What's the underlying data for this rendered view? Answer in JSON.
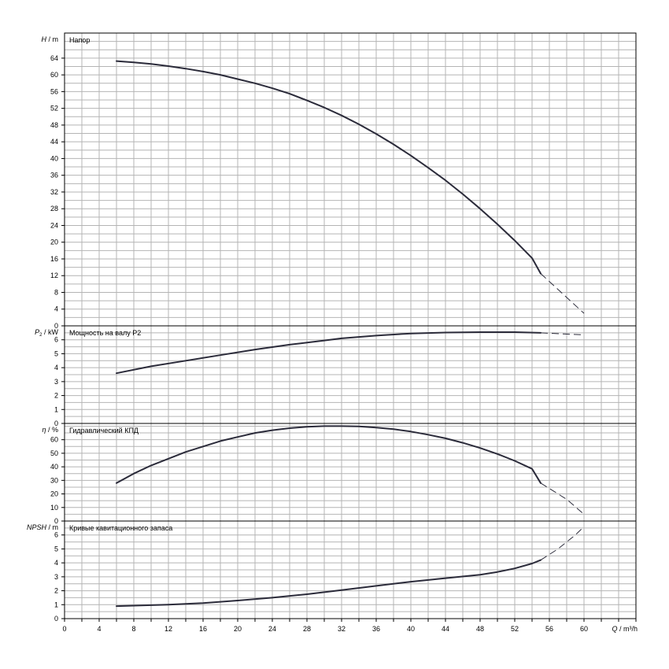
{
  "chart_data": [
    {
      "type": "line",
      "id": "head",
      "title": "Напор",
      "ylabel": {
        "sym": "H",
        "unit": "m"
      },
      "xlim": [
        0,
        66
      ],
      "ylim": [
        0,
        70
      ],
      "yticks": [
        0,
        4,
        8,
        12,
        16,
        20,
        24,
        28,
        32,
        36,
        40,
        44,
        48,
        52,
        56,
        60,
        64
      ],
      "series": [
        {
          "x": [
            6,
            8,
            10,
            12,
            14,
            16,
            18,
            20,
            22,
            24,
            26,
            28,
            30,
            32,
            34,
            36,
            38,
            40,
            42,
            44,
            46,
            48,
            50,
            52,
            54,
            55
          ],
          "y": [
            63.3,
            63.0,
            62.6,
            62.1,
            61.5,
            60.8,
            60.0,
            59.0,
            58.0,
            56.8,
            55.5,
            53.9,
            52.2,
            50.3,
            48.2,
            45.9,
            43.4,
            40.7,
            37.8,
            34.8,
            31.5,
            28.0,
            24.3,
            20.4,
            16.2,
            12.5
          ]
        },
        {
          "style": "dashed",
          "x": [
            55,
            60
          ],
          "y": [
            12.5,
            3.0
          ]
        }
      ]
    },
    {
      "type": "line",
      "id": "power",
      "title": "Мощность на валу P2",
      "ylabel": {
        "sym": "P",
        "sub": "2",
        "unit": "kW"
      },
      "xlim": [
        0,
        66
      ],
      "ylim": [
        0,
        7
      ],
      "yticks": [
        0,
        1,
        2,
        3,
        4,
        5,
        6
      ],
      "series": [
        {
          "x": [
            6,
            10,
            14,
            18,
            22,
            26,
            30,
            32,
            36,
            40,
            44,
            48,
            52,
            55
          ],
          "y": [
            3.6,
            4.1,
            4.5,
            4.9,
            5.3,
            5.65,
            5.95,
            6.1,
            6.3,
            6.45,
            6.52,
            6.55,
            6.55,
            6.5
          ]
        },
        {
          "style": "dashed",
          "x": [
            55,
            60
          ],
          "y": [
            6.5,
            6.35
          ]
        }
      ]
    },
    {
      "type": "line",
      "id": "efficiency",
      "title": "Гидравлический КПД",
      "ylabel": {
        "sym": "η",
        "unit": "%"
      },
      "xlim": [
        0,
        66
      ],
      "ylim": [
        0,
        72
      ],
      "yticks": [
        0,
        10,
        20,
        30,
        40,
        50,
        60
      ],
      "series": [
        {
          "x": [
            6,
            8,
            10,
            12,
            14,
            16,
            18,
            20,
            22,
            24,
            26,
            28,
            30,
            32,
            34,
            36,
            38,
            40,
            42,
            44,
            46,
            48,
            50,
            52,
            54,
            55
          ],
          "y": [
            28,
            35,
            41,
            46,
            51,
            55,
            59,
            62,
            65,
            67,
            68.5,
            69.5,
            70,
            70,
            69.8,
            69,
            67.8,
            66,
            63.7,
            61,
            57.7,
            53.9,
            49.5,
            44.4,
            38.5,
            28
          ]
        },
        {
          "style": "dashed",
          "x": [
            55,
            58,
            60
          ],
          "y": [
            28,
            16,
            5
          ]
        }
      ]
    },
    {
      "type": "line",
      "id": "npsh",
      "title": "Кривые кавитационного запаса",
      "ylabel": {
        "sym": "NPSH",
        "unit": "m"
      },
      "xlabel": {
        "sym": "Q",
        "unit": "m³/h"
      },
      "xlim": [
        0,
        66
      ],
      "ylim": [
        0,
        7
      ],
      "yticks": [
        0,
        1,
        2,
        3,
        4,
        5,
        6
      ],
      "xticks": [
        0,
        4,
        8,
        12,
        16,
        20,
        24,
        28,
        32,
        36,
        40,
        44,
        48,
        52,
        56,
        60
      ],
      "series": [
        {
          "x": [
            6,
            8,
            12,
            16,
            20,
            24,
            28,
            32,
            36,
            40,
            44,
            48,
            50,
            52,
            54,
            55
          ],
          "y": [
            0.9,
            0.93,
            1.0,
            1.12,
            1.3,
            1.5,
            1.75,
            2.05,
            2.35,
            2.65,
            2.9,
            3.15,
            3.35,
            3.6,
            3.95,
            4.2
          ]
        },
        {
          "style": "dashed",
          "x": [
            55,
            57,
            59,
            60
          ],
          "y": [
            4.2,
            5.0,
            6.0,
            6.6
          ]
        }
      ]
    }
  ]
}
